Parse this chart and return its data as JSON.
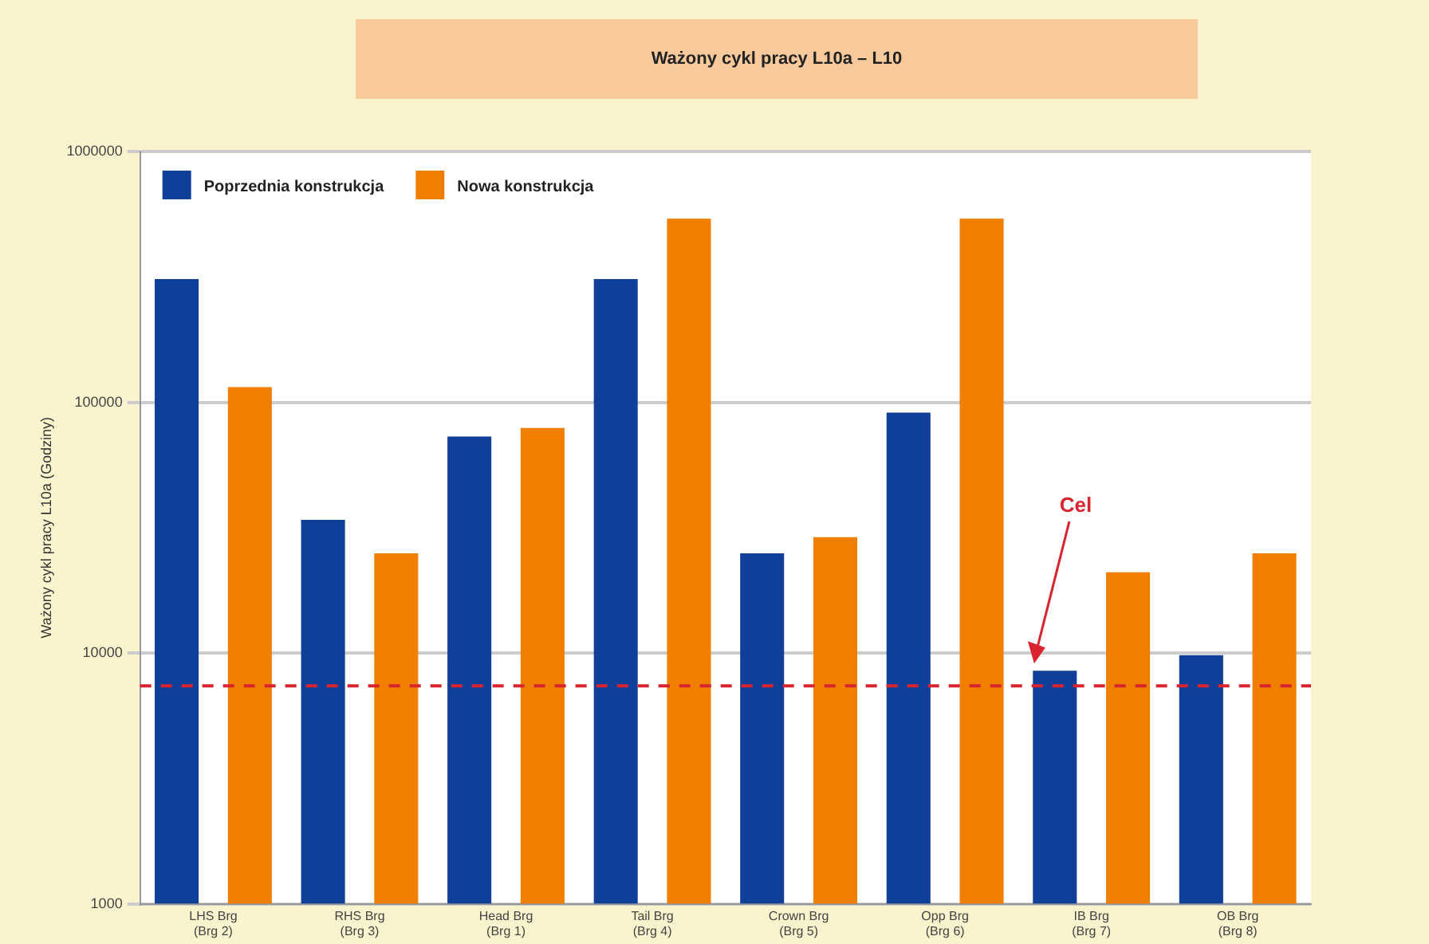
{
  "chart_data": {
    "type": "bar",
    "title": "Ważony cykl pracy L10a – L10",
    "ylabel": "Ważony cykl pracy L10a (Godziny)",
    "categories": [
      "LHS Brg (Brg 2)",
      "RHS Brg (Brg 3)",
      "Head Brg (Brg 1)",
      "Tail Brg (Brg 4)",
      "Crown Brg (Brg 5)",
      "Opp Brg (Brg 6)",
      "IB Brg (Brg 7)",
      "OB Brg (Brg 8)"
    ],
    "series": [
      {
        "name": "Poprzednia konstrukcja",
        "color": "#0f3f99",
        "values": [
          310000,
          34000,
          73000,
          310000,
          25000,
          91000,
          8500,
          9800
        ]
      },
      {
        "name": "Nowa konstrukcja",
        "color": "#f07f00",
        "values": [
          115000,
          25000,
          79000,
          540000,
          29000,
          540000,
          21000,
          25000
        ]
      }
    ],
    "log": "y",
    "ylim": [
      1000,
      1000000
    ],
    "yticks": [
      1000,
      10000,
      100000,
      1000000
    ],
    "grid": "y",
    "legend": "top left",
    "ref_lines": [
      {
        "axis": "y",
        "value": 7400,
        "color": "#d9232e",
        "line_style": "dashed"
      }
    ],
    "annotations": [
      "Cel"
    ]
  }
}
